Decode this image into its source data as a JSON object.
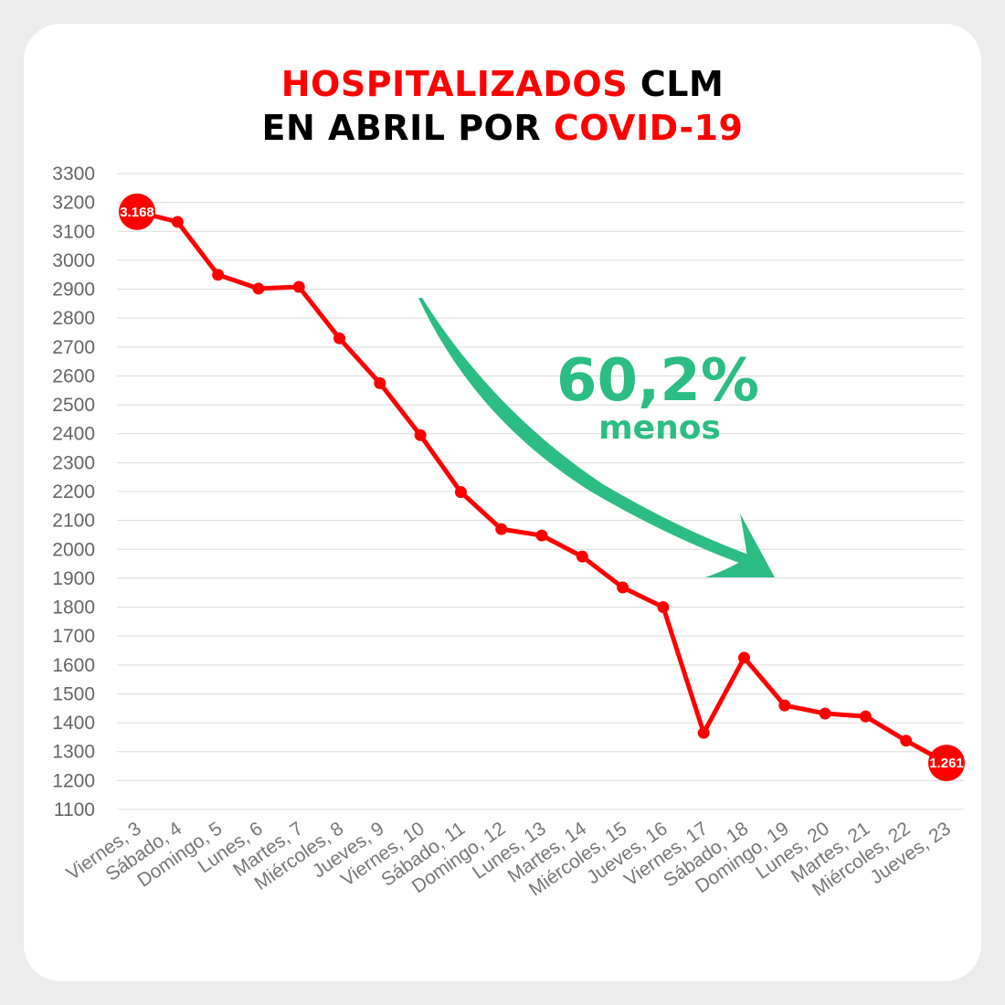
{
  "title": {
    "line1_red": "HOSPITALIZADOS",
    "line1_black": " CLM",
    "line2_black": "EN ABRIL POR ",
    "line2_red": "COVID-19"
  },
  "colors": {
    "line": "#ff0000",
    "arrow": "#2bbd84",
    "grid": "#dcdcdc",
    "title_red": "#ff0000",
    "title_black": "#000000"
  },
  "annotation": {
    "percent": "60,2%",
    "word": "menos"
  },
  "chart_data": {
    "type": "line",
    "title": "HOSPITALIZADOS CLM EN ABRIL POR COVID-19",
    "xlabel": "",
    "ylabel": "",
    "ylim": [
      1100,
      3300
    ],
    "yticks": [
      1100,
      1200,
      1300,
      1400,
      1500,
      1600,
      1700,
      1800,
      1900,
      2000,
      2100,
      2200,
      2300,
      2400,
      2500,
      2600,
      2700,
      2800,
      2900,
      3000,
      3100,
      3200,
      3300
    ],
    "grid": true,
    "categories": [
      "Viernes, 3",
      "Sábado, 4",
      "Domingo, 5",
      "Lunes, 6",
      "Martes, 7",
      "Miércoles, 8",
      "Jueves, 9",
      "Viernes, 10",
      "Sábado, 11",
      "Domingo, 12",
      "Lunes, 13",
      "Martes, 14",
      "Miércoles, 15",
      "Jueves, 16",
      "Viernes, 17",
      "Sábado, 18",
      "Domingo, 19",
      "Lunes, 20",
      "Martes, 21",
      "Miércoles, 22",
      "Jueves, 23"
    ],
    "values": [
      3168,
      3133,
      2950,
      2902,
      2908,
      2730,
      2575,
      2395,
      2198,
      2070,
      2048,
      1975,
      1868,
      1800,
      1365,
      1625,
      1460,
      1432,
      1422,
      1338,
      1261
    ],
    "labels": {
      "first": "3.168",
      "last": "1.261"
    }
  }
}
